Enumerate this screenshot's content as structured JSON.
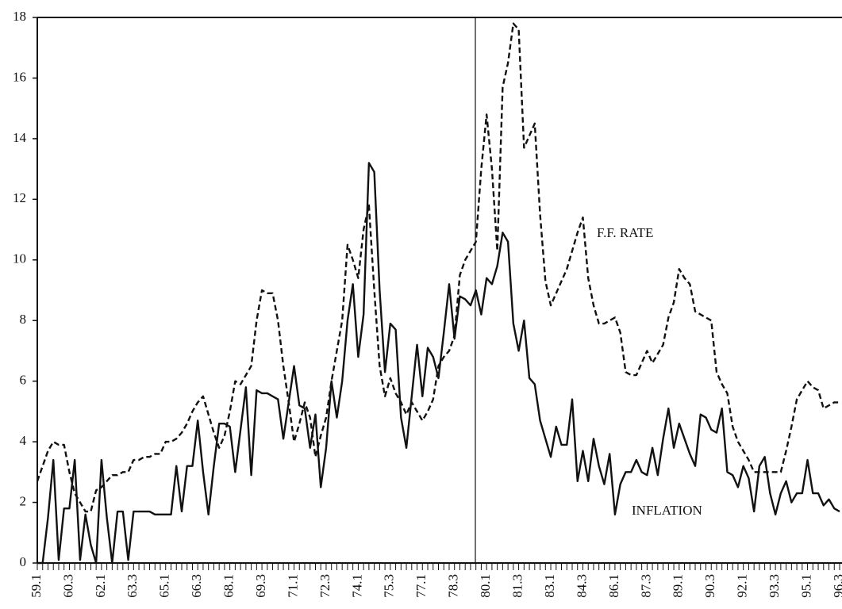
{
  "chart_data": {
    "type": "line",
    "categories": [
      "59.1",
      null,
      null,
      null,
      null,
      null,
      "60.3",
      null,
      null,
      null,
      null,
      null,
      "62.1",
      null,
      null,
      null,
      null,
      null,
      "63.3",
      null,
      null,
      null,
      null,
      null,
      "65.1",
      null,
      null,
      null,
      null,
      null,
      "66.3",
      null,
      null,
      null,
      null,
      null,
      "68.1",
      null,
      null,
      null,
      null,
      null,
      "69.3",
      null,
      null,
      null,
      null,
      null,
      "71.1",
      null,
      null,
      null,
      null,
      null,
      "72.3",
      null,
      null,
      null,
      null,
      null,
      "74.1",
      null,
      null,
      null,
      null,
      null,
      "75.3",
      null,
      null,
      null,
      null,
      null,
      "77.1",
      null,
      null,
      null,
      null,
      null,
      "78.3",
      null,
      null,
      null,
      null,
      null,
      "80.1",
      null,
      null,
      null,
      null,
      null,
      "81.3",
      null,
      null,
      null,
      null,
      null,
      "83.1",
      null,
      null,
      null,
      null,
      null,
      "84.3",
      null,
      null,
      null,
      null,
      null,
      "86.1",
      null,
      null,
      null,
      null,
      null,
      "87.3",
      null,
      null,
      null,
      null,
      null,
      "89.1",
      null,
      null,
      null,
      null,
      null,
      "90.3",
      null,
      null,
      null,
      null,
      null,
      "92.1",
      null,
      null,
      null,
      null,
      null,
      "93.3",
      null,
      null,
      null,
      null,
      null,
      "95.1",
      null,
      null,
      null,
      null,
      null,
      "96.3"
    ],
    "series": [
      {
        "name": "F.F. RATE",
        "color": "#111111",
        "dashed": true,
        "values": [
          2.7,
          3.2,
          3.7,
          4.0,
          3.9,
          3.9,
          3.0,
          2.3,
          2.0,
          1.7,
          1.7,
          2.4,
          2.5,
          2.7,
          2.9,
          2.9,
          3.0,
          3.0,
          3.4,
          3.4,
          3.5,
          3.5,
          3.6,
          3.6,
          4.0,
          4.0,
          4.1,
          4.3,
          4.6,
          5.0,
          5.3,
          5.5,
          4.9,
          4.3,
          3.8,
          4.2,
          5.0,
          6.0,
          5.9,
          6.2,
          6.5,
          8.0,
          9.0,
          8.9,
          8.9,
          8.0,
          6.5,
          5.3,
          4.0,
          4.6,
          5.3,
          4.8,
          3.5,
          4.2,
          4.8,
          6.0,
          7.0,
          8.0,
          10.5,
          10.0,
          9.4,
          11.0,
          11.8,
          9.0,
          6.5,
          5.5,
          6.1,
          5.6,
          5.3,
          4.9,
          5.3,
          5.0,
          4.7,
          5.0,
          5.4,
          6.5,
          6.8,
          7.0,
          7.5,
          9.5,
          10.0,
          10.3,
          10.6,
          13.0,
          14.8,
          13.0,
          10.3,
          15.7,
          16.5,
          17.8,
          17.6,
          13.7,
          14.1,
          14.5,
          11.5,
          9.3,
          8.5,
          8.9,
          9.3,
          9.7,
          10.3,
          10.9,
          11.4,
          9.4,
          8.5,
          7.9,
          7.9,
          8.0,
          8.1,
          7.6,
          6.3,
          6.2,
          6.2,
          6.6,
          7.0,
          6.6,
          6.9,
          7.2,
          8.1,
          8.6,
          9.7,
          9.4,
          9.2,
          8.3,
          8.2,
          8.1,
          8.0,
          6.3,
          5.9,
          5.6,
          4.5,
          4.0,
          3.7,
          3.4,
          3.0,
          3.0,
          3.0,
          3.0,
          3.0,
          3.0,
          3.7,
          4.5,
          5.4,
          5.7,
          6.0,
          5.8,
          5.7,
          5.1,
          5.2,
          5.3,
          5.3
        ]
      },
      {
        "name": "INFLATION",
        "color": "#111111",
        "dashed": false,
        "values": [
          0,
          0,
          1.5,
          3.4,
          0.1,
          1.8,
          1.8,
          3.4,
          0.1,
          1.6,
          0.6,
          0,
          3.4,
          1.5,
          0,
          1.7,
          1.7,
          0.1,
          1.7,
          1.7,
          1.7,
          1.7,
          1.6,
          1.6,
          1.6,
          1.6,
          3.2,
          1.7,
          3.2,
          3.2,
          4.7,
          3.0,
          1.6,
          3.2,
          4.6,
          4.6,
          4.5,
          3.0,
          4.4,
          5.8,
          2.9,
          5.7,
          5.6,
          5.6,
          5.5,
          5.4,
          4.1,
          5.3,
          6.5,
          5.2,
          5.1,
          3.8,
          4.9,
          2.5,
          3.8,
          6.0,
          4.8,
          6.0,
          8.0,
          9.2,
          6.8,
          8.2,
          13.2,
          12.9,
          9.0,
          6.3,
          7.9,
          7.7,
          4.8,
          3.8,
          5.5,
          7.2,
          5.5,
          7.1,
          6.8,
          6.1,
          7.6,
          9.2,
          7.4,
          8.8,
          8.7,
          8.5,
          9.0,
          8.2,
          9.4,
          9.2,
          9.8,
          10.9,
          10.6,
          7.9,
          7.0,
          8.0,
          6.1,
          5.9,
          4.7,
          4.1,
          3.5,
          4.5,
          3.9,
          3.9,
          5.4,
          2.7,
          3.7,
          2.7,
          4.1,
          3.2,
          2.6,
          3.6,
          1.6,
          2.6,
          3.0,
          3.0,
          3.4,
          3.0,
          2.9,
          3.8,
          2.9,
          4.1,
          5.1,
          3.8,
          4.6,
          4.1,
          3.6,
          3.2,
          4.9,
          4.8,
          4.4,
          4.3,
          5.1,
          3.0,
          2.9,
          2.5,
          3.2,
          2.8,
          1.7,
          3.2,
          3.5,
          2.3,
          1.6,
          2.3,
          2.7,
          2.0,
          2.3,
          2.3,
          3.4,
          2.3,
          2.3,
          1.9,
          2.1,
          1.8,
          1.7
        ]
      }
    ],
    "ylim": [
      0,
      18
    ],
    "yticks": [
      0,
      2,
      4,
      6,
      8,
      10,
      12,
      14,
      16,
      18
    ]
  }
}
